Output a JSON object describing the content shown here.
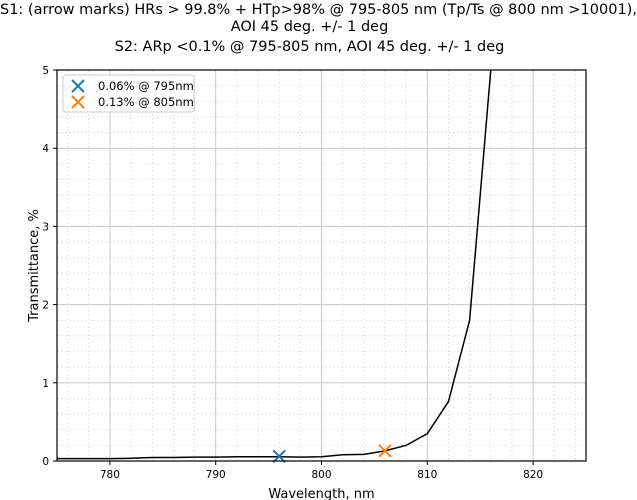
{
  "chart_data": {
    "type": "line",
    "title_lines": [
      "S1: (arrow marks) HRs > 99.8% + HTp>98% @ 795-805 nm (Tp/Ts @ 800 nm >10001),",
      "AOI 45 deg. +/- 1 deg",
      "S2: ARp <0.1% @ 795-805 nm, AOI 45 deg. +/- 1 deg"
    ],
    "xlabel": "Wavelength, nm",
    "ylabel": "Transmittance, %",
    "xlim": [
      775,
      825
    ],
    "ylim": [
      0,
      5
    ],
    "xticks": [
      780,
      790,
      800,
      810,
      820
    ],
    "yticks": [
      0,
      1,
      2,
      3,
      4,
      5
    ],
    "grid": "major and minor",
    "series": [
      {
        "name": "transmittance",
        "color": "#000000",
        "x": [
          775,
          780,
          782,
          784,
          786,
          788,
          790,
          792,
          794,
          796,
          798,
          800,
          802,
          804,
          806,
          808,
          810,
          812,
          814,
          816
        ],
        "y": [
          0.03,
          0.03,
          0.035,
          0.045,
          0.045,
          0.05,
          0.05,
          0.055,
          0.055,
          0.055,
          0.05,
          0.055,
          0.08,
          0.085,
          0.13,
          0.2,
          0.35,
          0.76,
          1.8,
          5.0
        ]
      }
    ],
    "markers": [
      {
        "label": "0.06% @ 795nm",
        "x": 796,
        "y": 0.06,
        "color": "#1f77b4"
      },
      {
        "label": "0.13% @ 805nm",
        "x": 806,
        "y": 0.13,
        "color": "#ff7f0e"
      }
    ],
    "legend_position": "top-left"
  }
}
